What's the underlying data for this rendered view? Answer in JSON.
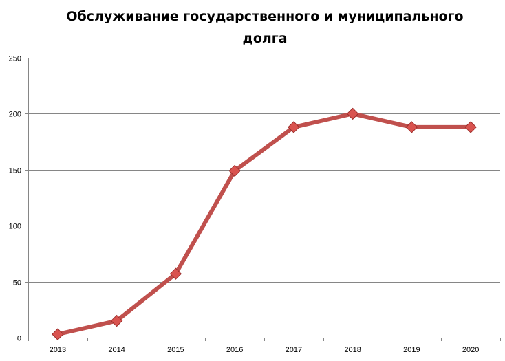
{
  "chart_data": {
    "type": "line",
    "title_lines": [
      "Обслуживание государственного и муниципального",
      "долга"
    ],
    "categories": [
      "2013",
      "2014",
      "2015",
      "2016",
      "2017",
      "2018",
      "2019",
      "2020"
    ],
    "series": [
      {
        "values": [
          3,
          15,
          57,
          149,
          188,
          200,
          188,
          188
        ]
      }
    ],
    "ylim": [
      0,
      250
    ],
    "yticks": [
      0,
      50,
      100,
      150,
      200,
      250
    ],
    "grid": true,
    "legend": "none",
    "colors": {
      "line": "#c0504d",
      "marker": "#d9534f",
      "marker_edge": "#9b2d2a",
      "grid": "#868686"
    }
  }
}
